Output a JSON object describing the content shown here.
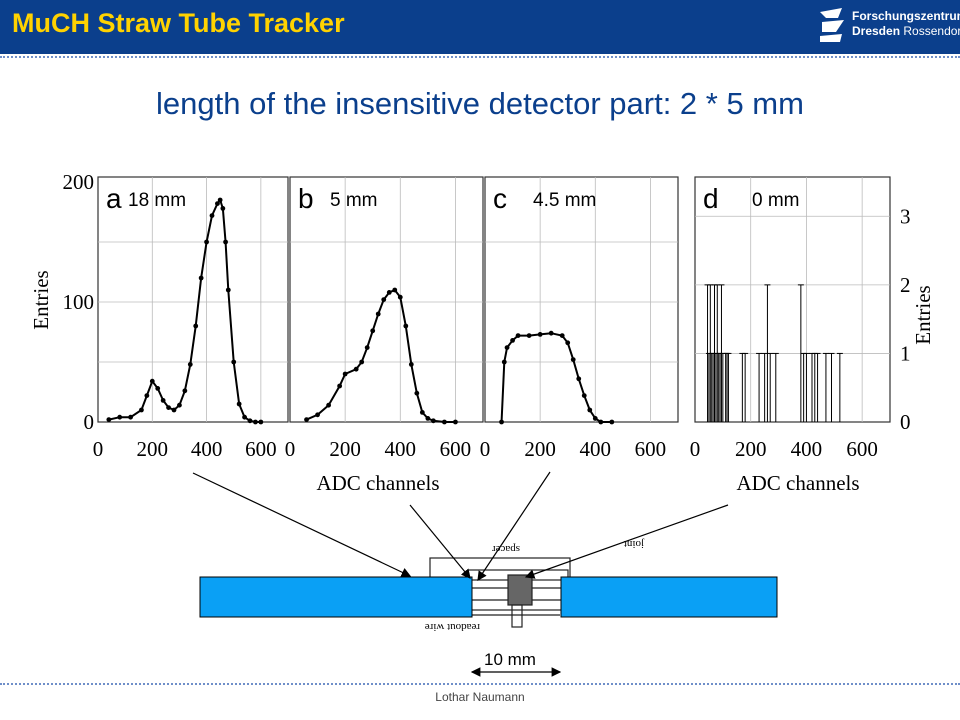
{
  "header": {
    "title": "MuCH Straw Tube Tracker",
    "logo_line1": "Forschungszentrum",
    "logo_line2_bold": "Dresden",
    "logo_line2_rest": "Rossendorf",
    "background": "#0b3f8c",
    "title_color": "#ffd200"
  },
  "subtitle": "length of the  insensitive detector part:  2 * 5 mm",
  "panels": [
    {
      "letter": "a",
      "length_label": "18 mm"
    },
    {
      "letter": "b",
      "length_label": "5 mm"
    },
    {
      "letter": "c",
      "length_label": "4.5 mm"
    },
    {
      "letter": "d",
      "length_label": "0 mm"
    }
  ],
  "chart_data": [
    {
      "type": "scatter",
      "panel": "a",
      "xlabel": "ADC channels",
      "ylabel": "Entries",
      "xlim": [
        0,
        700
      ],
      "ylim": [
        0,
        200
      ],
      "x_ticks": [
        0,
        200,
        400,
        600
      ],
      "y_ticks": [
        0,
        100,
        200
      ],
      "x": [
        40,
        80,
        120,
        160,
        180,
        200,
        220,
        240,
        260,
        280,
        300,
        320,
        340,
        360,
        380,
        400,
        420,
        440,
        450,
        460,
        470,
        480,
        500,
        520,
        540,
        560,
        580,
        600
      ],
      "y": [
        2,
        4,
        4,
        10,
        22,
        34,
        28,
        18,
        12,
        10,
        14,
        26,
        48,
        80,
        120,
        150,
        172,
        182,
        185,
        178,
        150,
        110,
        50,
        15,
        4,
        1,
        0,
        0
      ]
    },
    {
      "type": "scatter",
      "panel": "b",
      "xlabel": "ADC channels",
      "ylabel": "Entries",
      "xlim": [
        0,
        700
      ],
      "ylim": [
        0,
        200
      ],
      "x_ticks": [
        0,
        200,
        400,
        600
      ],
      "x": [
        60,
        100,
        140,
        180,
        200,
        240,
        260,
        280,
        300,
        320,
        340,
        360,
        380,
        400,
        420,
        440,
        460,
        480,
        500,
        520,
        560,
        600
      ],
      "y": [
        2,
        6,
        14,
        30,
        40,
        44,
        50,
        62,
        76,
        90,
        102,
        108,
        110,
        104,
        80,
        48,
        24,
        8,
        3,
        1,
        0,
        0
      ]
    },
    {
      "type": "scatter",
      "panel": "c",
      "xlabel": "ADC channels",
      "ylabel": "Entries",
      "xlim": [
        0,
        700
      ],
      "ylim": [
        0,
        200
      ],
      "x_ticks": [
        0,
        200,
        400,
        600
      ],
      "x": [
        60,
        70,
        80,
        100,
        120,
        160,
        200,
        240,
        280,
        300,
        320,
        340,
        360,
        380,
        400,
        420,
        460
      ],
      "y": [
        0,
        50,
        62,
        68,
        72,
        72,
        73,
        74,
        72,
        66,
        52,
        36,
        22,
        10,
        3,
        0,
        0
      ]
    },
    {
      "type": "bar",
      "panel": "d",
      "xlabel": "ADC channels",
      "ylabel": "Entries",
      "xlim": [
        0,
        700
      ],
      "ylim": [
        0,
        3.5
      ],
      "x_ticks": [
        0,
        200,
        400,
        600
      ],
      "y_ticks": [
        0,
        1,
        2,
        3
      ],
      "x": [
        45,
        50,
        55,
        60,
        65,
        70,
        75,
        80,
        85,
        90,
        95,
        100,
        110,
        115,
        120,
        170,
        180,
        230,
        250,
        260,
        270,
        290,
        380,
        390,
        400,
        420,
        430,
        440,
        470,
        490,
        520
      ],
      "y": [
        2,
        1,
        2,
        1,
        1,
        2,
        1,
        2,
        1,
        1,
        2,
        1,
        1,
        1,
        1,
        1,
        1,
        1,
        1,
        2,
        1,
        1,
        2,
        1,
        1,
        1,
        1,
        1,
        1,
        1,
        1
      ]
    }
  ],
  "scheme": {
    "label_spacer": "spacer",
    "label_joint": "joint",
    "label_readout_wire": "readout wire",
    "gap_label": "10 mm",
    "tube_color": "#0aa0f5"
  },
  "footer": "Lothar Naumann"
}
